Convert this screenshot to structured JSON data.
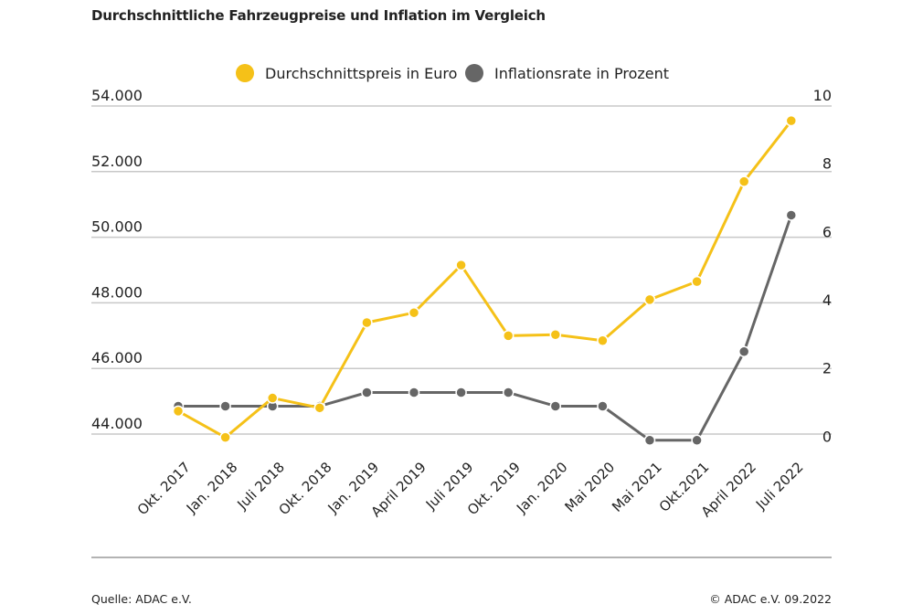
{
  "chart_data": {
    "type": "line",
    "title": "Durchschnittliche Fahrzeugpreise und Inflation im Vergleich",
    "categories": [
      "Okt. 2017",
      "Jan. 2018",
      "Juli 2018",
      "Okt. 2018",
      "Jan. 2019",
      "April 2019",
      "Juli 2019",
      "Okt. 2019",
      "Jan. 2020",
      "Mai 2020",
      "Mai 2021",
      "Okt.2021",
      "April 2022",
      "Juli 2022"
    ],
    "series": [
      {
        "name": "Durchschnittspreis in Euro",
        "axis": "left",
        "color": "#f5c118",
        "values": [
          44700,
          43900,
          45100,
          44800,
          47400,
          47700,
          49150,
          47000,
          47030,
          46850,
          48100,
          48650,
          51700,
          53550
        ]
      },
      {
        "name": "Inflationsrate in Prozent",
        "axis": "right",
        "color": "#666666",
        "values": [
          1.2,
          1.2,
          1.2,
          1.2,
          1.6,
          1.6,
          1.6,
          1.6,
          1.2,
          1.2,
          0.2,
          0.2,
          2.8,
          6.8
        ]
      }
    ],
    "y_left": {
      "ylim": [
        43500,
        54000
      ],
      "ticks": [
        44000,
        46000,
        48000,
        50000,
        52000,
        54000
      ],
      "tick_labels": [
        "44.000",
        "46.000",
        "48.000",
        "50.000",
        "52.000",
        "54.000"
      ]
    },
    "y_right": {
      "ylim": [
        -0.1,
        10
      ],
      "ticks": [
        0,
        2,
        4,
        6,
        8,
        10
      ],
      "tick_labels": [
        "0",
        "2",
        "4",
        "6",
        "8",
        "10"
      ]
    },
    "grid": true,
    "legend_position": "top-center"
  },
  "footer": {
    "source": "Quelle: ADAC e.V.",
    "copyright": "© ADAC e.V. 09.2022"
  },
  "colors": {
    "grid": "#c8c8c8",
    "bottom_rule": "#9a9a9a",
    "dot_outline": "#ffffff"
  }
}
